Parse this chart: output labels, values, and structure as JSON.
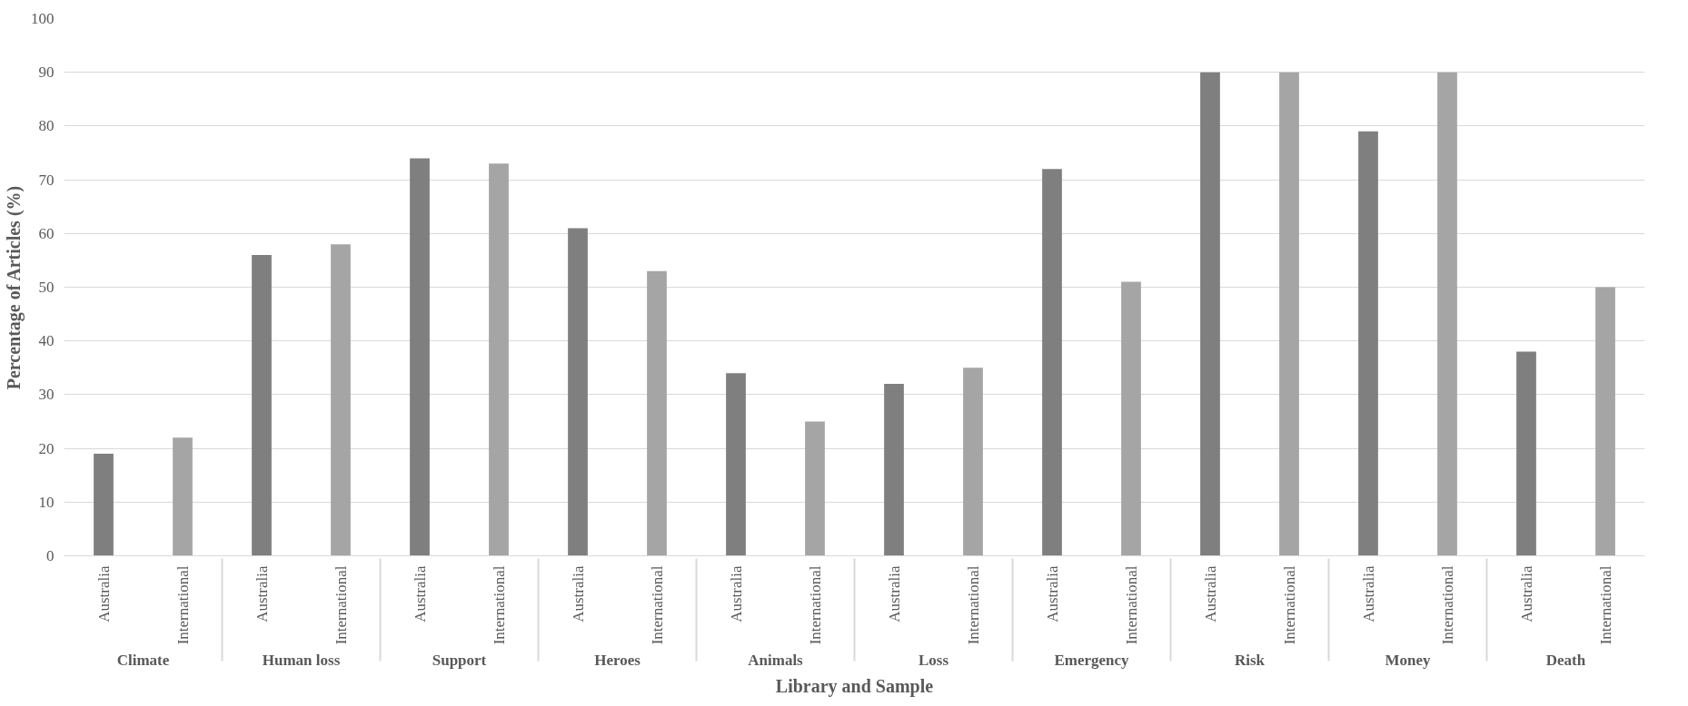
{
  "chart_data": {
    "type": "bar",
    "xlabel": "Library and Sample",
    "ylabel": "Percentage of Articles (%)",
    "categories": [
      "Climate",
      "Human loss",
      "Support",
      "Heroes",
      "Animals",
      "Loss",
      "Emergency",
      "Risk",
      "Money",
      "Death"
    ],
    "series": [
      {
        "name": "Australia",
        "color": "#7f7f7f",
        "values": [
          19,
          56,
          74,
          61,
          34,
          32,
          72,
          90,
          79,
          38
        ]
      },
      {
        "name": "International",
        "color": "#a5a5a5",
        "values": [
          22,
          58,
          73,
          53,
          25,
          35,
          51,
          90,
          90,
          50
        ]
      }
    ],
    "ylim": [
      0,
      100
    ],
    "yticks": [
      0,
      10,
      20,
      30,
      40,
      50,
      60,
      70,
      80,
      90,
      100
    ],
    "grid": "y"
  }
}
